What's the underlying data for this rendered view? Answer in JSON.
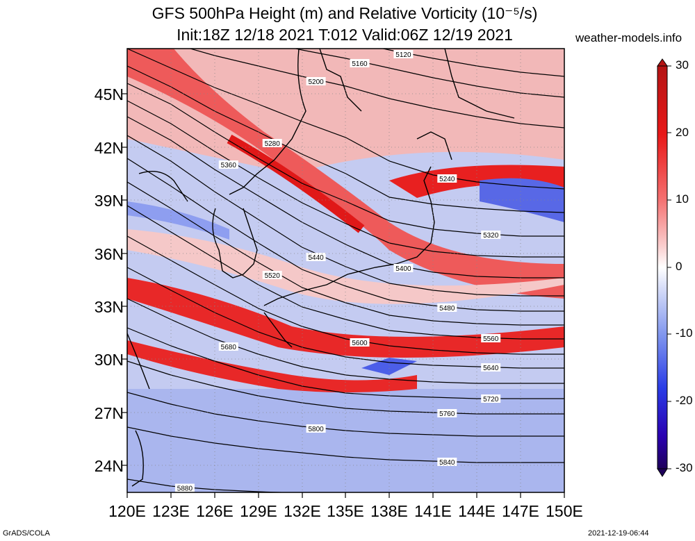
{
  "title": {
    "line1": "GFS 500hPa Height (m) and Relative Vorticity (10⁻⁵/s)",
    "line2": "Init:18Z 12/18 2021 T:012 Valid:06Z 12/19 2021"
  },
  "site": "weather-models.info",
  "lat_labels": [
    "45N",
    "42N",
    "39N",
    "36N",
    "33N",
    "30N",
    "27N",
    "24N"
  ],
  "lon_labels": [
    "120E",
    "123E",
    "126E",
    "129E",
    "132E",
    "135E",
    "138E",
    "141E",
    "144E",
    "147E",
    "150E"
  ],
  "colorbar": {
    "ticks": [
      "30",
      "20",
      "10",
      "0",
      "-10",
      "-20",
      "-30"
    ],
    "colors": [
      "#1e005a",
      "#3a00c8",
      "#3c50f0",
      "#8aa0f0",
      "#dde4fa",
      "#ffffff",
      "#fadcdc",
      "#f59090",
      "#f03030",
      "#c80a0a",
      "#b41414"
    ]
  },
  "contours": [
    {
      "label": "5120",
      "y": [
        -10,
        6,
        20,
        32,
        45,
        58,
        72,
        84,
        95,
        104,
        110
      ]
    },
    {
      "label": "5160",
      "y": [
        10,
        28,
        44,
        58,
        72,
        84,
        98,
        112,
        124,
        134,
        140
      ]
    },
    {
      "label": "5200",
      "y": [
        40,
        62,
        80,
        95,
        110,
        124,
        142,
        156,
        168,
        178,
        184
      ]
    },
    {
      "label": "5240",
      "y": [
        70,
        98,
        126,
        150,
        175,
        198,
        232,
        252,
        262,
        268,
        272
      ]
    },
    {
      "label": "5280",
      "y": [
        95,
        125,
        160,
        190,
        222,
        250,
        284,
        294,
        300,
        304,
        306
      ]
    },
    {
      "label": "5320",
      "y": [
        120,
        150,
        190,
        228,
        264,
        290,
        318,
        330,
        336,
        340,
        340
      ]
    },
    {
      "label": "5360",
      "y": [
        145,
        178,
        218,
        256,
        292,
        322,
        350,
        362,
        368,
        370,
        370
      ]
    },
    {
      "label": "5400",
      "y": [
        168,
        202,
        244,
        282,
        320,
        352,
        380,
        392,
        398,
        400,
        400
      ]
    },
    {
      "label": "5440",
      "y": [
        195,
        232,
        276,
        316,
        356,
        384,
        408,
        418,
        424,
        426,
        426
      ]
    },
    {
      "label": "5480",
      "y": [
        228,
        268,
        310,
        350,
        388,
        412,
        432,
        440,
        446,
        448,
        448
      ]
    },
    {
      "label": "5520",
      "y": [
        262,
        300,
        340,
        378,
        414,
        436,
        454,
        462,
        466,
        468,
        468
      ]
    },
    {
      "label": "5560",
      "y": [
        296,
        334,
        372,
        410,
        442,
        460,
        476,
        482,
        486,
        488,
        488
      ]
    },
    {
      "label": "5600",
      "y": [
        340,
        375,
        410,
        444,
        470,
        488,
        498,
        504,
        508,
        510,
        510
      ]
    },
    {
      "label": "5640",
      "y": [
        385,
        418,
        450,
        478,
        500,
        514,
        522,
        526,
        528,
        530,
        530
      ]
    },
    {
      "label": "5680",
      "y": [
        430,
        460,
        488,
        510,
        528,
        540,
        546,
        550,
        552,
        552,
        552
      ]
    },
    {
      "label": "5720",
      "y": [
        472,
        498,
        520,
        540,
        556,
        566,
        570,
        572,
        574,
        574,
        574
      ]
    },
    {
      "label": "5760",
      "y": [
        520,
        540,
        556,
        570,
        580,
        588,
        592,
        594,
        596,
        596,
        596
      ]
    },
    {
      "label": "5800",
      "y": [
        565,
        582,
        596,
        606,
        614,
        620,
        624,
        626,
        628,
        628,
        628
      ]
    },
    {
      "label": "5840",
      "y": [
        615,
        628,
        638,
        646,
        652,
        658,
        662,
        664,
        666,
        666,
        666
      ]
    },
    {
      "label": "5880",
      "y": [
        690,
        700,
        705,
        708,
        710,
        712,
        714,
        714,
        714,
        714,
        714
      ]
    }
  ],
  "footer": {
    "left": "GrADS/COLA",
    "right": "2021-12-19-06:44"
  }
}
